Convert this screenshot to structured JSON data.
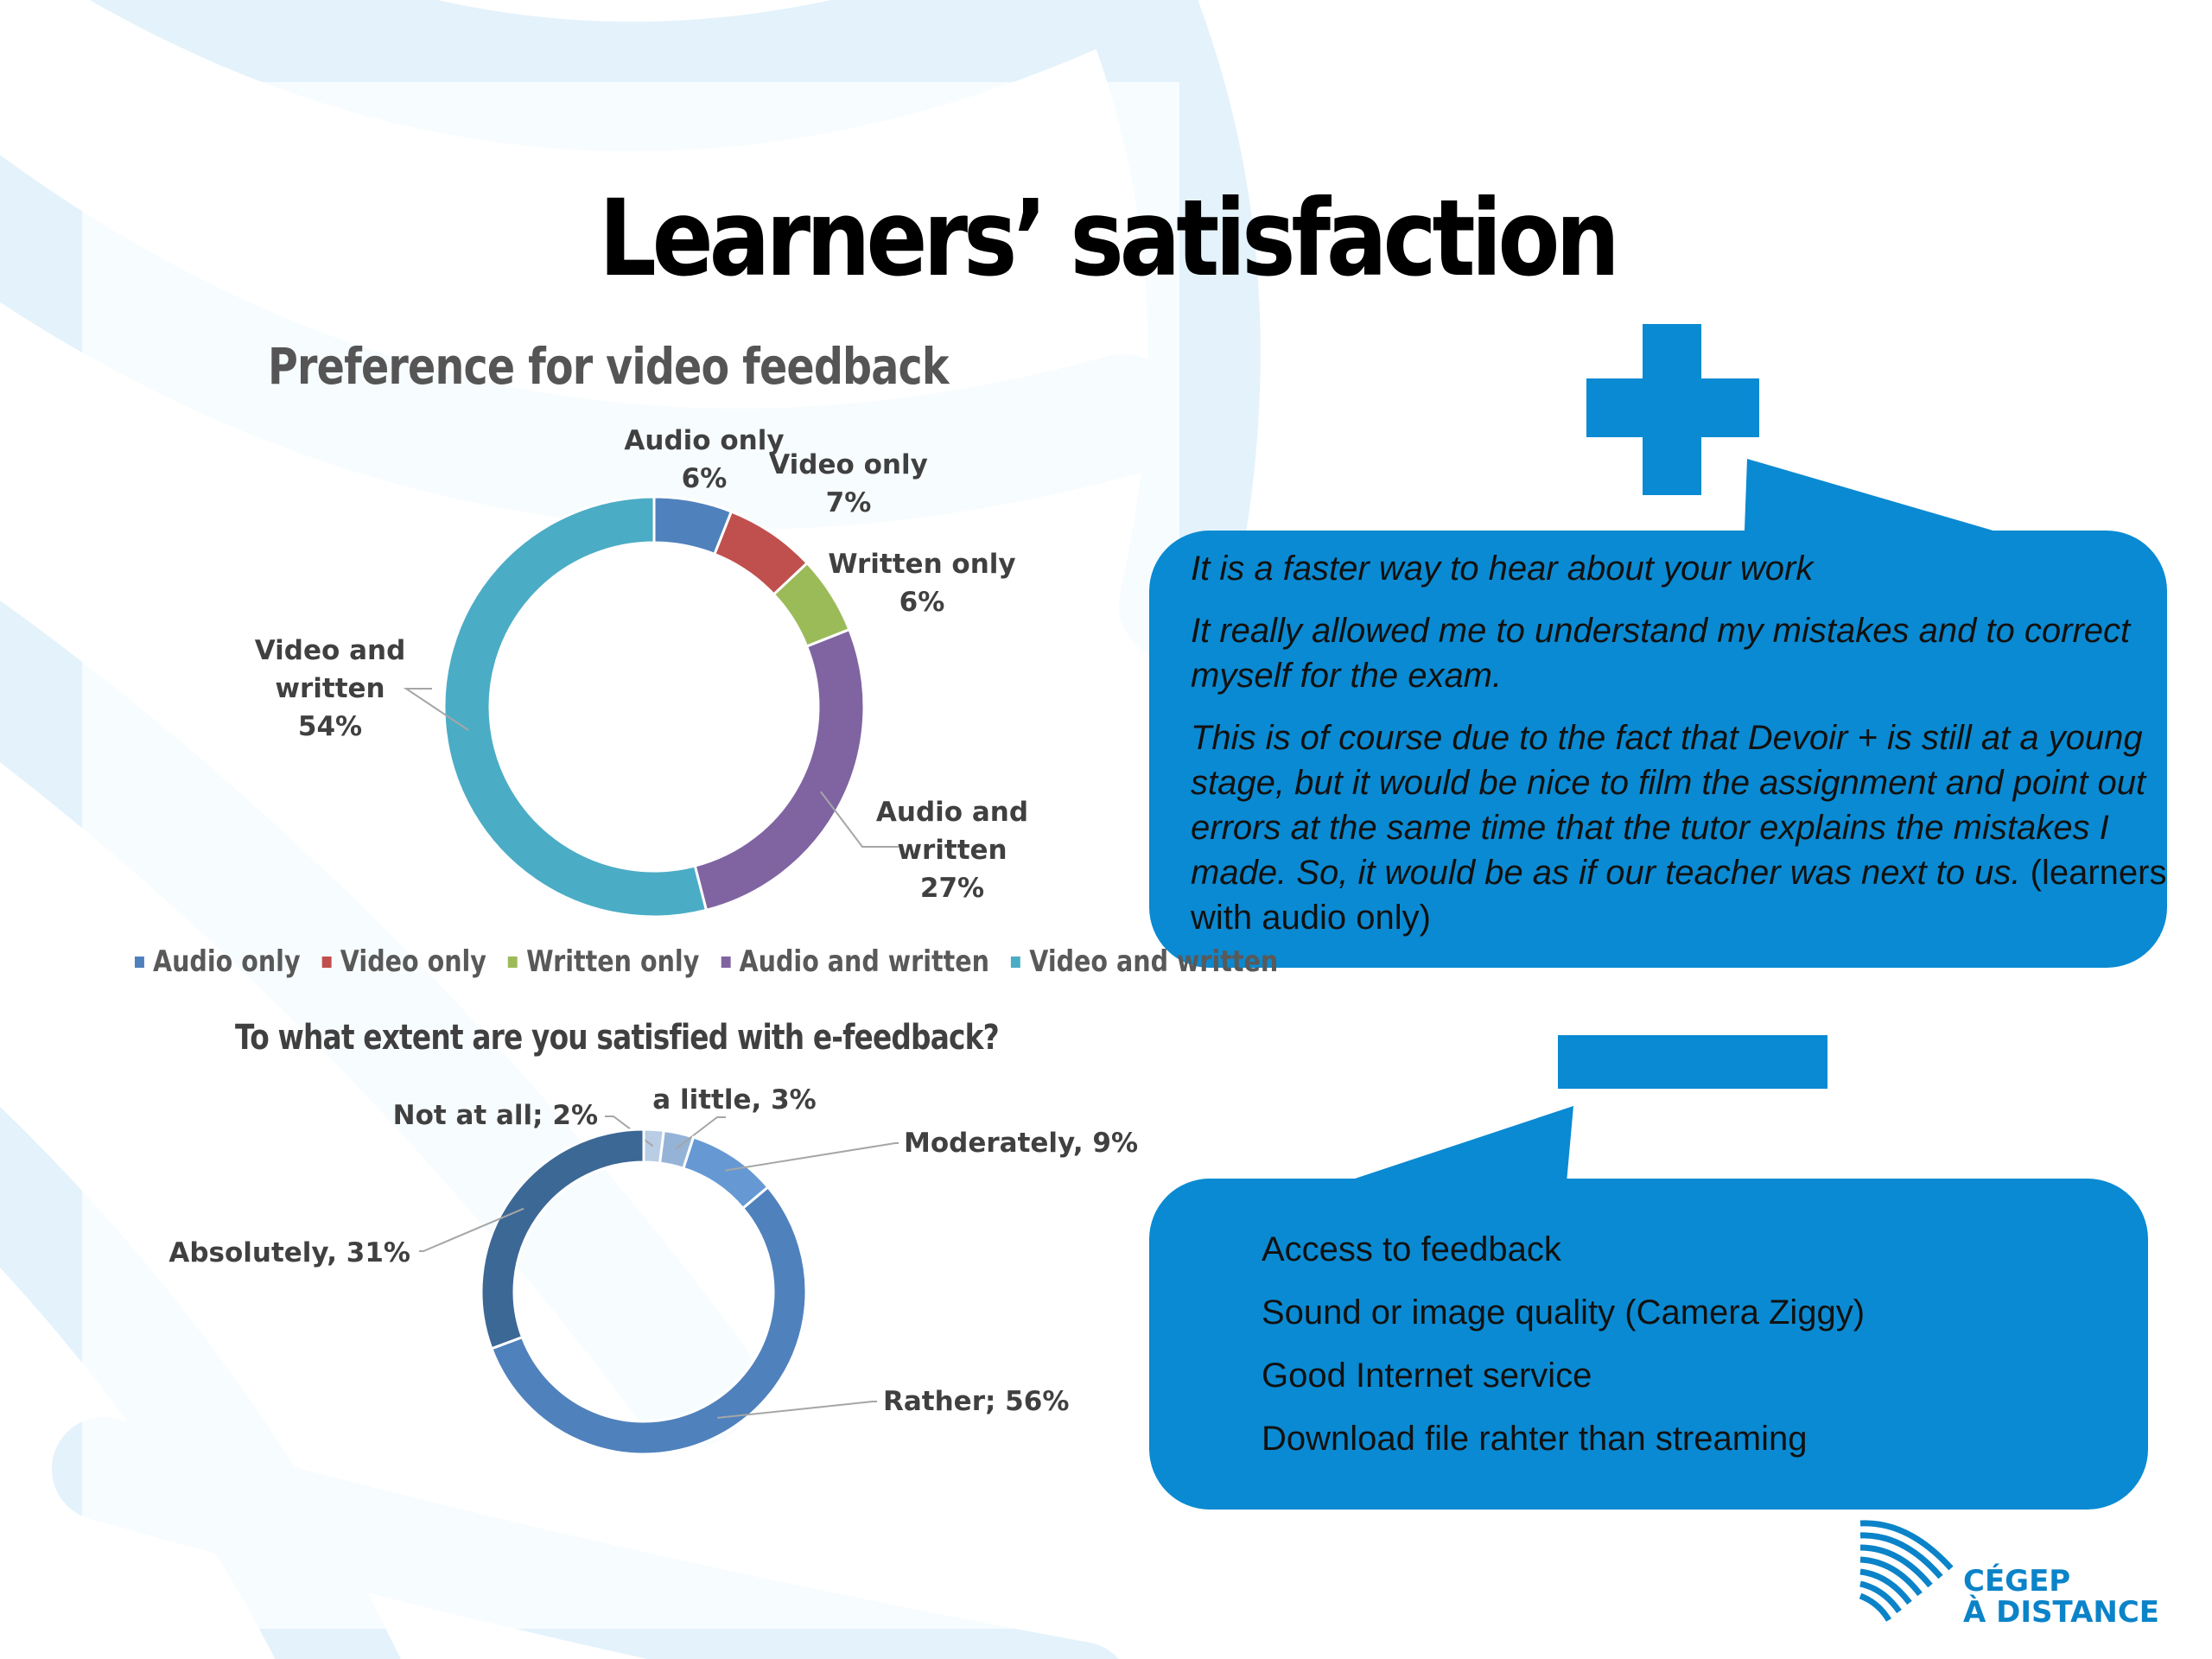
{
  "slide": {
    "title": "Learners’ satisfaction"
  },
  "colors": {
    "accent_blue": "#0a8ad2",
    "bg_swoosh": "#e3f2fb"
  },
  "icons": {
    "plus": "plus-icon",
    "minus": "minus-icon",
    "logo": "cegep-wave-logo-icon"
  },
  "positive_callout": {
    "quote1": "It is a faster way to hear about your work",
    "quote2": "It really allowed me to understand my mistakes and to correct myself for the exam.",
    "quote3": "This is of course due to the fact that Devoir + is still at a young stage, but it would be nice to film the assignment and point out errors at the same time that the tutor explains the mistakes I made. So, it would be as if our teacher was next to us.",
    "quote3_note": " (learners with audio only)"
  },
  "negative_callout": {
    "items": [
      "Access to feedback",
      "Sound or image quality (Camera Ziggy)",
      "Good Internet service",
      "Download file rahter than streaming"
    ]
  },
  "logo": {
    "line1": "CÉGEP",
    "line2": "À DISTANCE"
  },
  "chart_data": [
    {
      "type": "pie",
      "variant": "donut",
      "title": "Preference for video feedback",
      "categories": [
        "Audio only",
        "Video only",
        "Written only",
        "Audio and written",
        "Video and written"
      ],
      "values": [
        6,
        7,
        6,
        27,
        54
      ],
      "unit": "%",
      "data_labels": [
        [
          "Audio only",
          "6%"
        ],
        [
          "Video only",
          "7%"
        ],
        [
          "Written only",
          "6%"
        ],
        [
          "Audio and",
          "written",
          "27%"
        ],
        [
          "Video and",
          "written",
          "54%"
        ]
      ],
      "colors": [
        "#4f81bd",
        "#c0504d",
        "#9bbb59",
        "#8064a2",
        "#4bacc6"
      ],
      "legend": {
        "position": "bottom",
        "labels": [
          "Audio only",
          "Video only",
          "Written only",
          "Audio and written",
          "Video and written"
        ]
      }
    },
    {
      "type": "pie",
      "variant": "donut",
      "title": "To what extent are you satisfied with e-feedback?",
      "categories": [
        "Not at all",
        "a little",
        "Moderately",
        "Rather",
        "Absolutely"
      ],
      "values": [
        2,
        3,
        9,
        56,
        31
      ],
      "unit": "%",
      "data_labels": [
        "Not at all; 2%",
        "a little, 3%",
        "Moderately, 9%",
        "Rather; 56%",
        "Absolutely, 31%"
      ],
      "colors": [
        "#b9cde5",
        "#95b3d7",
        "#6699d4",
        "#4f81bd",
        "#3c6896"
      ],
      "legend": {
        "position": "none"
      }
    }
  ]
}
